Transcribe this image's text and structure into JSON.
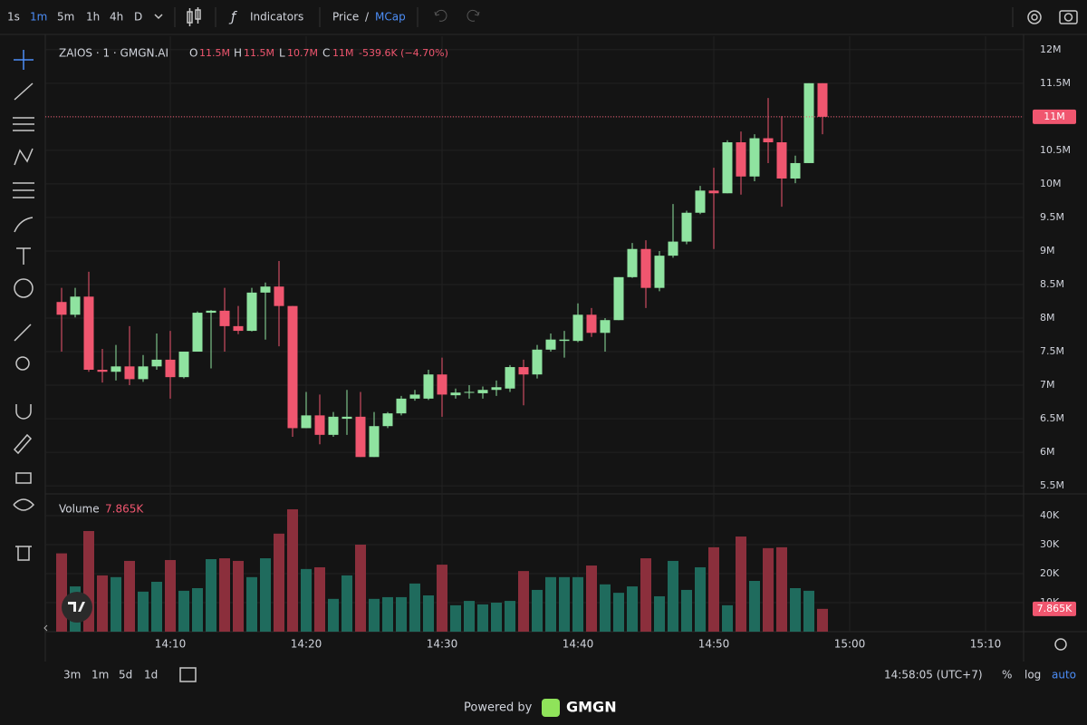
{
  "toolbar": {
    "intervals": [
      "1s",
      "1m",
      "5m",
      "1h",
      "4h",
      "D"
    ],
    "indicators": "Indicators",
    "price": "Price",
    "slash": "/",
    "mcap": "MCap"
  },
  "legend": {
    "symbol": "ZAIOS · 1 · GMGN.AI",
    "o_label": "O",
    "o": "11.5M",
    "h_label": "H",
    "h": "11.5M",
    "l_label": "L",
    "l": "10.7M",
    "c_label": "C",
    "c": "11M",
    "change": "-539.6K (−4.70%)"
  },
  "volume_legend": {
    "label": "Volume",
    "value": "7.865K"
  },
  "bottom": {
    "ranges": [
      "3m",
      "1m",
      "5d",
      "1d"
    ],
    "clock": "14:58:05 (UTC+7)",
    "percent": "%",
    "log": "log",
    "auto": "auto"
  },
  "footer": {
    "powered": "Powered by",
    "brand": "GMGN"
  },
  "chart_data": {
    "type": "candlestick",
    "x": [
      842,
      843,
      844,
      845,
      846,
      847,
      848,
      849,
      850,
      851,
      852,
      853,
      854,
      855,
      856,
      857,
      858,
      859,
      860,
      861,
      862,
      863,
      864,
      865,
      866,
      867,
      868,
      869,
      870,
      871,
      872,
      873,
      874,
      875,
      876,
      877,
      878,
      879,
      880,
      881,
      882,
      883,
      884,
      885,
      886,
      887,
      888,
      889,
      890,
      891,
      892,
      893,
      894,
      895,
      896,
      897,
      898
    ],
    "open": [
      8.24,
      8.05,
      8.32,
      7.23,
      7.2,
      7.28,
      7.09,
      7.28,
      7.38,
      7.12,
      7.5,
      8.08,
      8.11,
      7.88,
      7.81,
      8.38,
      8.47,
      8.18,
      6.36,
      6.55,
      6.26,
      6.5,
      6.53,
      5.93,
      6.39,
      6.58,
      6.8,
      6.8,
      7.16,
      6.85,
      6.89,
      6.88,
      6.93,
      6.95,
      7.27,
      7.16,
      7.53,
      7.66,
      7.66,
      8.05,
      7.78,
      7.97,
      8.61,
      9.03,
      8.45,
      8.93,
      9.14,
      9.57,
      9.9,
      9.86,
      10.62,
      10.11,
      10.68,
      10.62,
      10.08,
      10.31,
      11.5
    ],
    "high": [
      8.45,
      8.45,
      8.69,
      7.54,
      7.6,
      7.88,
      7.45,
      7.77,
      7.81,
      7.5,
      8.1,
      8.12,
      8.45,
      8.18,
      8.45,
      8.53,
      8.85,
      8.18,
      6.9,
      6.86,
      6.6,
      6.93,
      6.9,
      6.6,
      6.6,
      6.84,
      6.93,
      7.23,
      7.41,
      6.95,
      7.0,
      6.98,
      7.07,
      7.3,
      7.38,
      7.6,
      7.77,
      7.81,
      8.22,
      8.15,
      8.0,
      8.61,
      9.12,
      9.16,
      9.0,
      9.7,
      9.6,
      9.97,
      10.24,
      10.65,
      10.78,
      10.74,
      11.28,
      11.01,
      10.42,
      11.5,
      11.5
    ],
    "low": [
      7.5,
      8.01,
      7.2,
      7.04,
      7.07,
      7.0,
      7.05,
      7.23,
      6.8,
      7.1,
      7.5,
      7.25,
      7.5,
      7.76,
      7.8,
      7.68,
      7.58,
      6.23,
      6.36,
      6.12,
      6.23,
      6.26,
      5.93,
      5.93,
      6.36,
      6.55,
      6.77,
      6.78,
      6.53,
      6.8,
      6.8,
      6.8,
      6.84,
      6.9,
      6.7,
      7.1,
      7.5,
      7.41,
      7.64,
      7.72,
      7.5,
      7.97,
      8.6,
      8.15,
      8.4,
      8.9,
      9.1,
      9.55,
      9.03,
      9.86,
      9.84,
      10.04,
      10.31,
      9.66,
      10.01,
      10.31,
      10.74
    ],
    "close": [
      8.05,
      8.32,
      7.23,
      7.2,
      7.28,
      7.09,
      7.28,
      7.38,
      7.12,
      7.5,
      8.08,
      8.11,
      7.88,
      7.81,
      8.38,
      8.47,
      8.18,
      6.36,
      6.55,
      6.26,
      6.53,
      6.53,
      5.93,
      6.39,
      6.58,
      6.8,
      6.86,
      7.16,
      6.86,
      6.89,
      6.9,
      6.93,
      6.97,
      7.27,
      7.16,
      7.53,
      7.68,
      7.68,
      8.05,
      7.78,
      7.97,
      8.61,
      9.03,
      8.45,
      8.93,
      9.14,
      9.57,
      9.9,
      9.86,
      10.62,
      10.11,
      10.68,
      10.62,
      10.08,
      10.31,
      11.5,
      11.0
    ],
    "volume": [
      27,
      15.6,
      34.7,
      19.4,
      18.8,
      24.4,
      13.8,
      17.2,
      24.7,
      14.1,
      15,
      25,
      25.3,
      24.4,
      18.8,
      25.3,
      33.8,
      42.2,
      21.6,
      22.2,
      11.3,
      19.4,
      30,
      11.3,
      11.9,
      11.9,
      16.6,
      12.5,
      23.1,
      9.1,
      10.6,
      9.4,
      10,
      10.6,
      20.9,
      14.4,
      18.8,
      18.8,
      18.8,
      22.8,
      16.3,
      13.4,
      15.6,
      25.3,
      12.2,
      24.4,
      14.4,
      22.2,
      29.1,
      9.1,
      32.8,
      17.5,
      28.8,
      29.1,
      15,
      14.1,
      7.865
    ],
    "up_color": "#8fe3a0",
    "down_color": "#f0566f",
    "up_volume_color": "#1f6b5d",
    "down_volume_color": "#8b2f3c",
    "xlim": [
      840.8,
      912.8
    ],
    "xticks": [
      {
        "value": 850,
        "label": "14:10"
      },
      {
        "value": 860,
        "label": "14:20"
      },
      {
        "value": 870,
        "label": "14:30"
      },
      {
        "value": 880,
        "label": "14:40"
      },
      {
        "value": 890,
        "label": "14:50"
      },
      {
        "value": 900,
        "label": "15:00"
      },
      {
        "value": 910,
        "label": "15:10"
      }
    ],
    "ylim": [
      5.38,
      12.2
    ],
    "yticks": [
      {
        "value": 5.5,
        "label": "5.5M"
      },
      {
        "value": 6,
        "label": "6M"
      },
      {
        "value": 6.5,
        "label": "6.5M"
      },
      {
        "value": 7,
        "label": "7M"
      },
      {
        "value": 7.5,
        "label": "7.5M"
      },
      {
        "value": 8,
        "label": "8M"
      },
      {
        "value": 8.5,
        "label": "8.5M"
      },
      {
        "value": 9,
        "label": "9M"
      },
      {
        "value": 9.5,
        "label": "9.5M"
      },
      {
        "value": 10,
        "label": "10M"
      },
      {
        "value": 10.5,
        "label": "10.5M"
      },
      {
        "value": 11,
        "label": "11M"
      },
      {
        "value": 11.5,
        "label": "11.5M"
      },
      {
        "value": 12,
        "label": "12M"
      }
    ],
    "vlim": [
      0,
      47.5
    ],
    "vticks": [
      {
        "value": 10,
        "label": "10K"
      },
      {
        "value": 20,
        "label": "20K"
      },
      {
        "value": 30,
        "label": "30K"
      },
      {
        "value": 40,
        "label": "40K"
      }
    ],
    "last_price": {
      "value": 11,
      "label": "11M"
    },
    "last_volume": {
      "value": 7.865,
      "label": "7.865K"
    },
    "grid": true
  }
}
